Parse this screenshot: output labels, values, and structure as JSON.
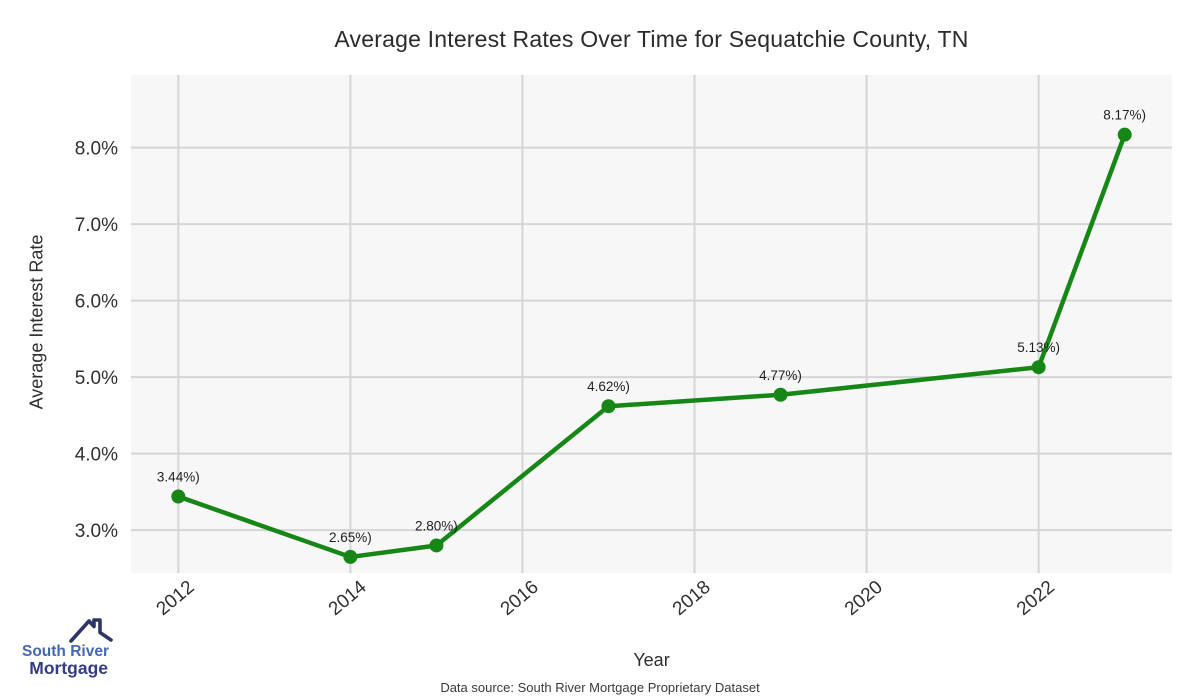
{
  "chart": {
    "title": "Average Interest Rates Over Time for Sequatchie County, TN",
    "xlabel": "Year",
    "ylabel": "Average Interest Rate",
    "source_note": "Data source: South River Mortgage Proprietary Dataset"
  },
  "logo": {
    "line1": "South River",
    "line2": "Mortgage",
    "icon": "house-roof-icon",
    "line1_color": "#4568ae",
    "line2_color": "#333c85",
    "roof_color": "#2d3566"
  },
  "chart_data": {
    "type": "line",
    "title": "Average Interest Rates Over Time for Sequatchie County, TN",
    "xlabel": "Year",
    "ylabel": "Average Interest Rate",
    "x": [
      2012,
      2014,
      2015,
      2017,
      2019,
      2022,
      2023
    ],
    "values": [
      3.44,
      2.65,
      2.8,
      4.62,
      4.77,
      5.13,
      8.17
    ],
    "point_labels": [
      "3.44%)",
      "2.65%)",
      "2.80%)",
      "4.62%)",
      "4.77%)",
      "5.13%)",
      "8.17%)"
    ],
    "x_ticks": [
      2012,
      2014,
      2016,
      2018,
      2020,
      2022
    ],
    "x_tick_labels": [
      "2012",
      "2014",
      "2016",
      "2018",
      "2020",
      "2022"
    ],
    "y_ticks": [
      3,
      4,
      5,
      6,
      7,
      8
    ],
    "y_tick_labels": [
      "3.0%",
      "4.0%",
      "5.0%",
      "6.0%",
      "7.0%",
      "8.0%"
    ],
    "xlim": [
      2011.45,
      2023.55
    ],
    "ylim": [
      2.44,
      8.95
    ],
    "grid": true,
    "legend": "none",
    "line_color": "#168716",
    "point_color": "#168716",
    "plot_bg": "#f7f7f7",
    "grid_color": "#d5d5d5",
    "tick_label_color": "#303030",
    "point_label_color": "#1f1f1f"
  }
}
